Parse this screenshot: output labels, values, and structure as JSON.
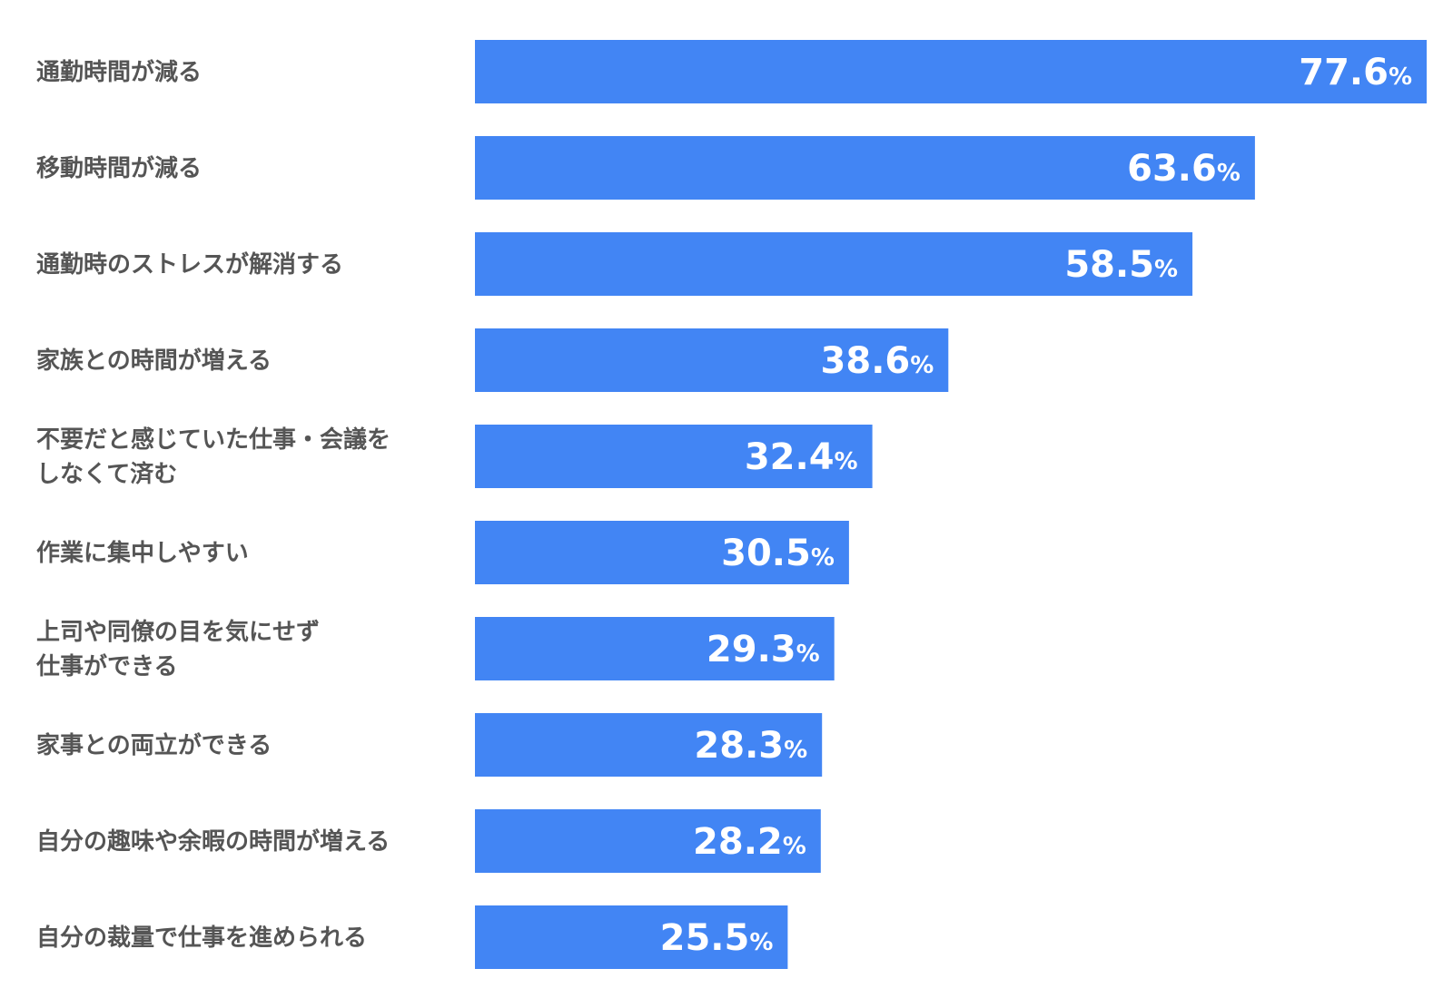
{
  "colors": {
    "bar": "#4285f4",
    "label": "#555555",
    "value_text": "#ffffff",
    "background": "#ffffff"
  },
  "chart_data": {
    "type": "bar",
    "orientation": "horizontal",
    "categories": [
      [
        "通勤時間が減る"
      ],
      [
        "移動時間が減る"
      ],
      [
        "通勤時のストレスが解消する"
      ],
      [
        "家族との時間が増える"
      ],
      [
        "不要だと感じていた仕事・会議を",
        "しなくて済む"
      ],
      [
        "作業に集中しやすい"
      ],
      [
        "上司や同僚の目を気にせず",
        "仕事ができる"
      ],
      [
        "家事との両立ができる"
      ],
      [
        "自分の趣味や余暇の時間が増える"
      ],
      [
        "自分の裁量で仕事を進められる"
      ]
    ],
    "values": [
      77.6,
      63.6,
      58.5,
      38.6,
      32.4,
      30.5,
      29.3,
      28.3,
      28.2,
      25.5
    ],
    "value_labels": [
      "77.6",
      "63.6",
      "58.5",
      "38.6",
      "32.4",
      "30.5",
      "29.3",
      "28.3",
      "28.2",
      "25.5"
    ],
    "unit": "%",
    "xlim": [
      0,
      77.6
    ],
    "grid": false,
    "legend": "none"
  }
}
